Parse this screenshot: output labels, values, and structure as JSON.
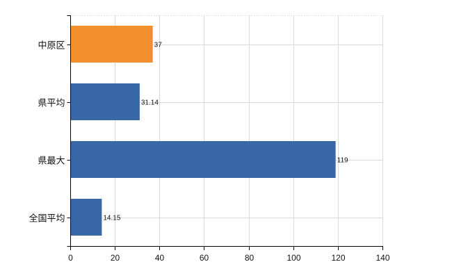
{
  "chart_data": {
    "type": "bar",
    "orientation": "horizontal",
    "title": "",
    "xlabel": "",
    "ylabel": "",
    "categories": [
      "中原区",
      "県平均",
      "県最大",
      "全国平均"
    ],
    "values": [
      37,
      31.14,
      119,
      14.15
    ],
    "value_labels": [
      "37",
      "31.14",
      "119",
      "14.15"
    ],
    "xlim": [
      0,
      140
    ],
    "xticks": [
      0,
      20,
      40,
      60,
      80,
      100,
      120,
      140
    ],
    "grid": true,
    "legend": "none",
    "colors": {
      "highlight": "#F28E2B",
      "default": "#3A67A6",
      "grid": "#D9D9D9",
      "axis": "#000000"
    },
    "highlight_index": 0
  }
}
